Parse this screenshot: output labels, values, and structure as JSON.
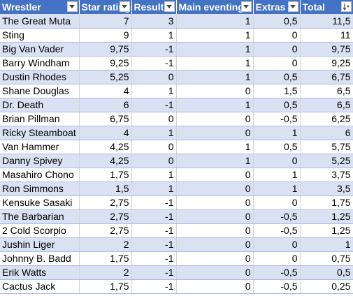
{
  "columns": [
    {
      "label": "Wrestler",
      "sort": "none"
    },
    {
      "label": "Star ratings",
      "sort": "none"
    },
    {
      "label": "Result",
      "sort": "none"
    },
    {
      "label": "Main eventing",
      "sort": "none"
    },
    {
      "label": "Extras",
      "sort": "none"
    },
    {
      "label": "Total",
      "sort": "descending"
    }
  ],
  "rows": [
    [
      "The Great Muta",
      "7",
      "3",
      "1",
      "0,5",
      "11,5"
    ],
    [
      "Sting",
      "9",
      "1",
      "1",
      "0",
      "11"
    ],
    [
      "Big Van Vader",
      "9,75",
      "-1",
      "1",
      "0",
      "9,75"
    ],
    [
      "Barry Windham",
      "9,25",
      "-1",
      "1",
      "0",
      "9,25"
    ],
    [
      "Dustin Rhodes",
      "5,25",
      "0",
      "1",
      "0,5",
      "6,75"
    ],
    [
      "Shane Douglas",
      "4",
      "1",
      "0",
      "1,5",
      "6,5"
    ],
    [
      "Dr. Death",
      "6",
      "-1",
      "1",
      "0,5",
      "6,5"
    ],
    [
      "Brian Pillman",
      "6,75",
      "0",
      "0",
      "-0,5",
      "6,25"
    ],
    [
      "Ricky Steamboat",
      "4",
      "1",
      "0",
      "1",
      "6"
    ],
    [
      "Van Hammer",
      "4,25",
      "0",
      "1",
      "0,5",
      "5,75"
    ],
    [
      "Danny Spivey",
      "4,25",
      "0",
      "1",
      "0",
      "5,25"
    ],
    [
      "Masahiro Chono",
      "1,75",
      "1",
      "0",
      "1",
      "3,75"
    ],
    [
      "Ron Simmons",
      "1,5",
      "1",
      "0",
      "1",
      "3,5"
    ],
    [
      "Kensuke Sasaki",
      "2,75",
      "-1",
      "0",
      "0",
      "1,75"
    ],
    [
      "The Barbarian",
      "2,75",
      "-1",
      "0",
      "-0,5",
      "1,25"
    ],
    [
      "2 Cold Scorpio",
      "2,75",
      "-1",
      "0",
      "-0,5",
      "1,25"
    ],
    [
      "Jushin Liger",
      "2",
      "-1",
      "0",
      "0",
      "1"
    ],
    [
      "Johnny B. Badd",
      "1,75",
      "-1",
      "0",
      "0",
      "0,75"
    ],
    [
      "Erik Watts",
      "2",
      "-1",
      "0",
      "-0,5",
      "0,5"
    ],
    [
      "Cactus Jack",
      "1,75",
      "-1",
      "0",
      "-0,5",
      "0,25"
    ]
  ],
  "colors": {
    "header_bg": "#4472c4",
    "band_odd": "#d9e1f2",
    "band_even": "#ffffff",
    "row_border": "#a9bde3"
  },
  "icons": {
    "filter": "filter-dropdown-icon",
    "sort_desc": "sort-descending-filter-icon"
  }
}
